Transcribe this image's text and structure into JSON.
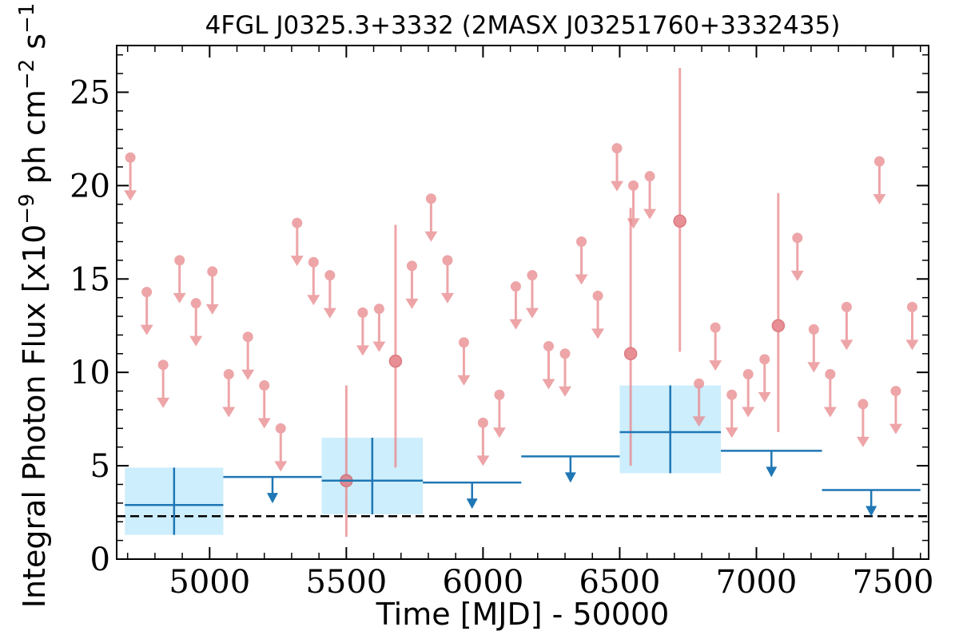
{
  "chart_data": {
    "type": "scatter",
    "title": "4FGL J0325.3+3332 (2MASX J03251760+3332435)",
    "xlabel": "Time [MJD] - 50000",
    "ylabel_parts": {
      "main": "Integral Photon Flux [x10",
      "exp1": "−9",
      "mid": " ph cm",
      "exp2": "−2",
      "mid2": " s",
      "exp3": "−1",
      "end": "]"
    },
    "xlim": [
      4660,
      7630
    ],
    "ylim": [
      0,
      27.5
    ],
    "x_ticks": [
      5000,
      5500,
      6000,
      6500,
      7000,
      7500
    ],
    "y_ticks": [
      0,
      5,
      10,
      15,
      20,
      25
    ],
    "x_minor_step": 100,
    "y_minor_step": 1,
    "baseline": 2.3,
    "colors": {
      "short_bins": "#e8888c",
      "long_bins": "#1f77b4",
      "long_bins_box": "#cdeefc",
      "baseline": "#000000"
    },
    "short_bin_upper_limits": [
      [
        4710,
        21.5
      ],
      [
        4770,
        14.3
      ],
      [
        4830,
        10.4
      ],
      [
        4890,
        16.0
      ],
      [
        4950,
        13.7
      ],
      [
        5010,
        15.4
      ],
      [
        5070,
        9.9
      ],
      [
        5140,
        11.9
      ],
      [
        5200,
        9.3
      ],
      [
        5260,
        7.0
      ],
      [
        5320,
        18.0
      ],
      [
        5380,
        15.9
      ],
      [
        5440,
        15.2
      ],
      [
        5560,
        13.2
      ],
      [
        5620,
        13.4
      ],
      [
        5740,
        15.7
      ],
      [
        5810,
        19.3
      ],
      [
        5870,
        16.0
      ],
      [
        5930,
        11.6
      ],
      [
        6000,
        7.3
      ],
      [
        6060,
        8.8
      ],
      [
        6120,
        14.6
      ],
      [
        6180,
        15.2
      ],
      [
        6240,
        11.4
      ],
      [
        6300,
        11.0
      ],
      [
        6360,
        17.0
      ],
      [
        6420,
        14.1
      ],
      [
        6490,
        22.0
      ],
      [
        6550,
        20.0
      ],
      [
        6610,
        20.5
      ],
      [
        6790,
        9.4
      ],
      [
        6850,
        12.4
      ],
      [
        6910,
        8.8
      ],
      [
        6970,
        9.9
      ],
      [
        7030,
        10.7
      ],
      [
        7150,
        17.2
      ],
      [
        7210,
        12.3
      ],
      [
        7270,
        9.9
      ],
      [
        7330,
        13.5
      ],
      [
        7390,
        8.3
      ],
      [
        7450,
        21.3
      ],
      [
        7510,
        9.0
      ],
      [
        7570,
        13.5
      ]
    ],
    "short_bin_detections": [
      {
        "x": 5500,
        "y": 4.2,
        "lo": 1.2,
        "hi": 9.3
      },
      {
        "x": 5680,
        "y": 10.6,
        "lo": 4.9,
        "hi": 17.9
      },
      {
        "x": 6540,
        "y": 11.0,
        "lo": 5.0,
        "hi": 18.8
      },
      {
        "x": 6720,
        "y": 18.1,
        "lo": 11.1,
        "hi": 26.3
      },
      {
        "x": 7080,
        "y": 12.5,
        "lo": 6.8,
        "hi": 19.6
      }
    ],
    "long_bin_detections": [
      {
        "x0": 4690,
        "x1": 5050,
        "y": 2.9,
        "lo": 1.3,
        "hi": 4.9
      },
      {
        "x0": 5410,
        "x1": 5780,
        "y": 4.2,
        "lo": 2.4,
        "hi": 6.5
      },
      {
        "x0": 6500,
        "x1": 6870,
        "y": 6.8,
        "lo": 4.6,
        "hi": 9.3
      }
    ],
    "long_bin_upper_limits": [
      {
        "x0": 5050,
        "x1": 5410,
        "y": 4.4
      },
      {
        "x0": 5780,
        "x1": 6140,
        "y": 4.1
      },
      {
        "x0": 6140,
        "x1": 6500,
        "y": 5.5
      },
      {
        "x0": 6870,
        "x1": 7240,
        "y": 5.8
      },
      {
        "x0": 7240,
        "x1": 7600,
        "y": 3.7
      }
    ]
  }
}
